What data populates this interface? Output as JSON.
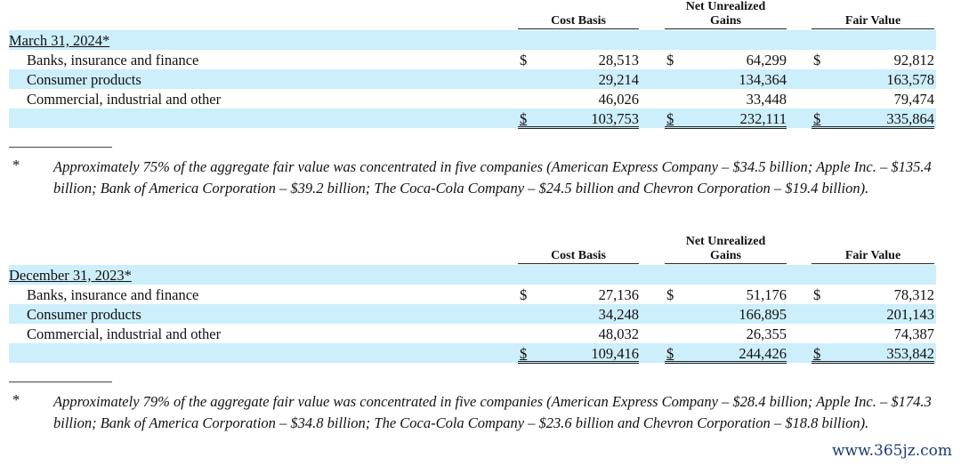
{
  "headers": {
    "cost_basis": "Cost Basis",
    "gains_line1": "Net Unrealized",
    "gains_line2": "Gains",
    "fair_value": "Fair Value"
  },
  "currency": "$",
  "tables": [
    {
      "period": "March 31, 2024*",
      "rows": [
        {
          "label": "Banks, insurance and finance",
          "cost": "28,513",
          "gains": "64,299",
          "fair": "92,812"
        },
        {
          "label": "Consumer products",
          "cost": "29,214",
          "gains": "134,364",
          "fair": "163,578"
        },
        {
          "label": "Commercial, industrial and other",
          "cost": "46,026",
          "gains": "33,448",
          "fair": "79,474"
        }
      ],
      "total": {
        "cost": "103,753",
        "gains": "232,111",
        "fair": "335,864"
      },
      "footnote_marker": "*",
      "footnote": "Approximately 75% of the aggregate fair value was concentrated in five companies (American Express Company – $34.5 billion; Apple Inc. – $135.4 billion; Bank of America Corporation – $39.2 billion; The Coca-Cola Company – $24.5 billion and Chevron Corporation – $19.4 billion)."
    },
    {
      "period": "December 31, 2023*",
      "rows": [
        {
          "label": "Banks, insurance and finance",
          "cost": "27,136",
          "gains": "51,176",
          "fair": "78,312"
        },
        {
          "label": "Consumer products",
          "cost": "34,248",
          "gains": "166,895",
          "fair": "201,143"
        },
        {
          "label": "Commercial, industrial and other",
          "cost": "48,032",
          "gains": "26,355",
          "fair": "74,387"
        }
      ],
      "total": {
        "cost": "109,416",
        "gains": "244,426",
        "fair": "353,842"
      },
      "footnote_marker": "*",
      "footnote": "Approximately 79% of the aggregate fair value was concentrated in five companies (American Express Company – $28.4 billion; Apple Inc. – $174.3 billion; Bank of America Corporation – $34.8 billion; The Coca-Cola Company – $23.6 billion and Chevron Corporation – $18.8 billion)."
    }
  ],
  "watermark": "www.365jz.com"
}
